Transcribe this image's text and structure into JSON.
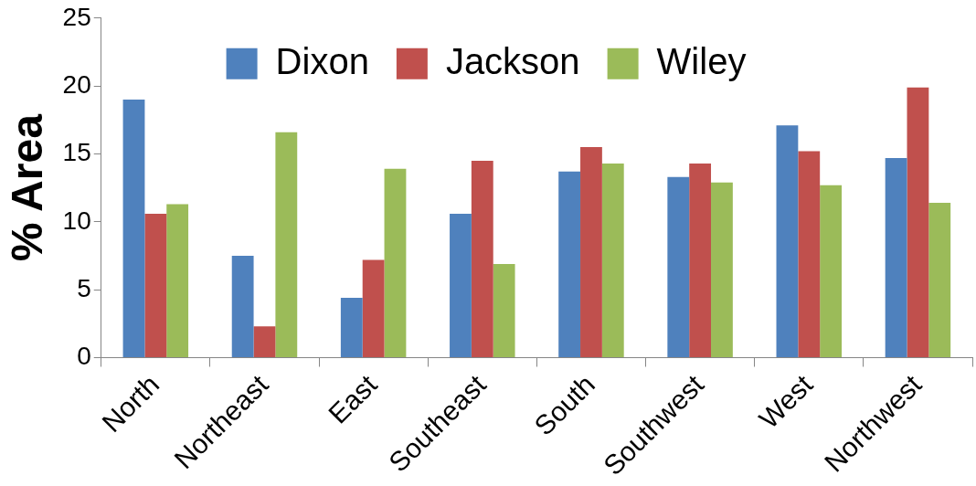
{
  "chart_data": {
    "type": "bar",
    "ylabel": "% Area",
    "categories": [
      "North",
      "Northeast",
      "East",
      "Southeast",
      "South",
      "Southwest",
      "West",
      "Northwest"
    ],
    "series": [
      {
        "name": "Dixon",
        "color": "#4f81bd",
        "values": [
          19.0,
          7.5,
          4.4,
          10.6,
          13.7,
          13.3,
          17.1,
          14.7
        ]
      },
      {
        "name": "Jackson",
        "color": "#c0504d",
        "values": [
          10.6,
          2.3,
          7.2,
          14.5,
          15.5,
          14.3,
          15.2,
          19.9
        ]
      },
      {
        "name": "Wiley",
        "color": "#9bbb59",
        "values": [
          11.3,
          16.6,
          13.9,
          6.9,
          14.3,
          12.9,
          12.7,
          11.4
        ]
      }
    ],
    "ylim": [
      0,
      25
    ],
    "yticks": [
      0,
      5,
      10,
      15,
      20,
      25
    ],
    "grid": false,
    "legend": "top"
  }
}
